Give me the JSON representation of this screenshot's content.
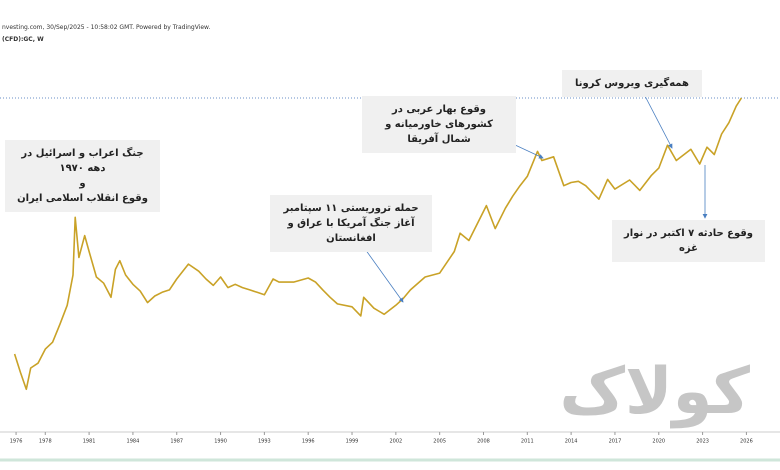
{
  "chart_data": {
    "type": "line",
    "source": "nvesting.com, 30/Sep/2025 - 10:58:02 GMT. Powered by TradingView.",
    "symbol": "(CFD):GC, W",
    "log_scale": true,
    "color": "#c9a227",
    "xlim": [
      1974.9,
      2028.3
    ],
    "ylim": [
      56,
      9460
    ],
    "xticks": [
      1976,
      1978,
      1981,
      1984,
      1987,
      1990,
      1993,
      1996,
      1999,
      2002,
      2005,
      2008,
      2011,
      2014,
      2017,
      2020,
      2023,
      2026
    ],
    "x": [
      1975.9,
      1976.3,
      1976.7,
      1977.0,
      1977.5,
      1978.0,
      1978.5,
      1979.0,
      1979.5,
      1979.9,
      1980.05,
      1980.3,
      1980.7,
      1981.0,
      1981.5,
      1982.0,
      1982.5,
      1982.8,
      1983.1,
      1983.5,
      1984.0,
      1984.5,
      1985.0,
      1985.5,
      1986.0,
      1986.5,
      1987.0,
      1987.8,
      1988.5,
      1989.0,
      1989.5,
      1990.0,
      1990.5,
      1991.0,
      1991.5,
      1992.0,
      1992.5,
      1993.0,
      1993.6,
      1994.0,
      1995.0,
      1996.0,
      1996.5,
      1997.0,
      1997.5,
      1998.0,
      1999.0,
      1999.6,
      1999.8,
      2000.5,
      2001.2,
      2002.0,
      2002.5,
      2003.0,
      2004.0,
      2005.0,
      2006.0,
      2006.4,
      2007.0,
      2008.2,
      2008.8,
      2009.5,
      2010.0,
      2010.5,
      2011.0,
      2011.7,
      2012.0,
      2012.8,
      2013.5,
      2014.0,
      2014.5,
      2015.0,
      2015.9,
      2016.5,
      2017.0,
      2018.0,
      2018.7,
      2019.5,
      2020.0,
      2020.6,
      2021.2,
      2022.2,
      2022.8,
      2023.3,
      2023.8,
      2024.3,
      2024.8,
      2025.3,
      2025.66
    ],
    "values": [
      160,
      128,
      104,
      135,
      143,
      170,
      185,
      230,
      290,
      420,
      850,
      520,
      680,
      560,
      410,
      380,
      320,
      450,
      500,
      420,
      375,
      345,
      300,
      325,
      340,
      350,
      400,
      480,
      440,
      400,
      370,
      410,
      360,
      375,
      360,
      350,
      340,
      330,
      400,
      385,
      385,
      405,
      385,
      350,
      320,
      295,
      285,
      255,
      320,
      280,
      260,
      290,
      315,
      350,
      410,
      430,
      560,
      700,
      640,
      980,
      740,
      950,
      1100,
      1250,
      1400,
      1900,
      1700,
      1780,
      1250,
      1300,
      1320,
      1250,
      1060,
      1350,
      1200,
      1340,
      1180,
      1420,
      1550,
      2050,
      1700,
      1950,
      1630,
      2000,
      1830,
      2350,
      2700,
      3300,
      3650
    ],
    "annotations": [
      {
        "lines": [
          "جنگ اعراب و اسرائیل در دهه ۱۹۷۰",
          "و",
          "وقوع انقلاب اسلامی ایران"
        ]
      },
      {
        "lines": [
          "حمله تروریستی ۱۱ سپتامبر",
          "آغاز جنگ آمریکا با عراق و افغانستان"
        ]
      },
      {
        "lines": [
          "وقوع بهار عربی در کشورهای خاورمیانه و",
          "شمال آفریقا"
        ]
      },
      {
        "lines": [
          "همه‌گیری ویروس کرونا"
        ]
      },
      {
        "lines": [
          "وقوع حادثه ۷ اکتبر در نوار غزه"
        ]
      }
    ],
    "watermark": "کولاک"
  }
}
